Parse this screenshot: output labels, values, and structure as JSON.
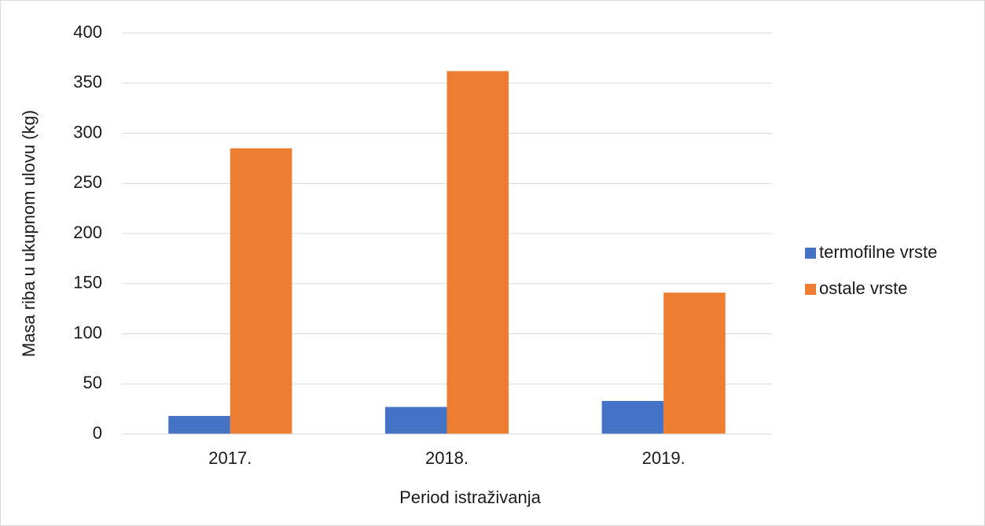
{
  "chart_data": {
    "type": "bar",
    "xlabel": "Period istraživanja",
    "ylabel": "Masa riba u ukupnom ulovu  (kg)",
    "categories": [
      "2017.",
      "2018.",
      "2019."
    ],
    "series": [
      {
        "name": "termofilne vrste",
        "color": "#4472c4",
        "values": [
          18,
          27,
          33
        ]
      },
      {
        "name": "ostale vrste",
        "color": "#ed7d31",
        "values": [
          285,
          362,
          141
        ]
      }
    ],
    "ylim": [
      0,
      400
    ],
    "yticks": [
      0,
      50,
      100,
      150,
      200,
      250,
      300,
      350,
      400
    ],
    "grid": true,
    "legend": "right"
  }
}
